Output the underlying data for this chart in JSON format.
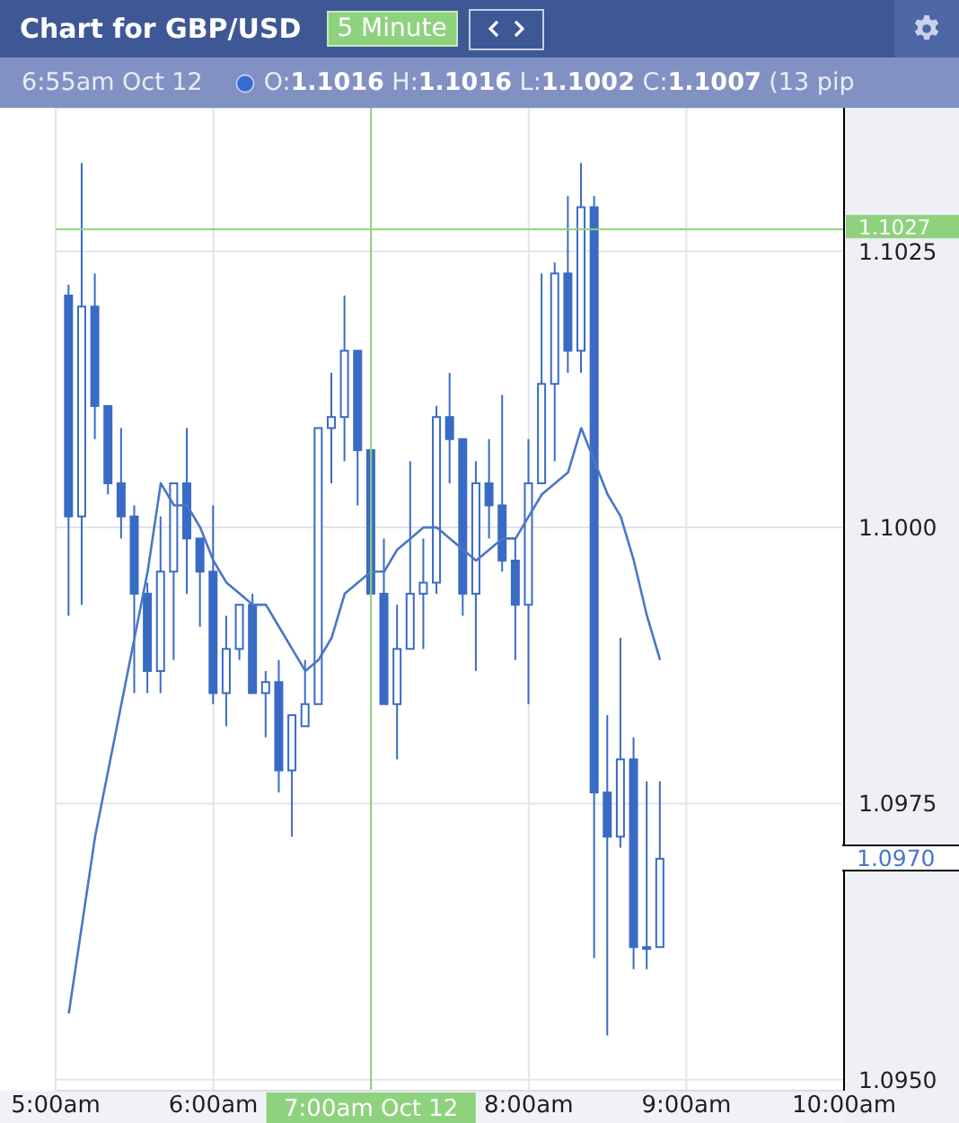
{
  "chart_data": {
    "type": "candlestick",
    "title": "Chart for GBP/USD",
    "subtitle": "5 Minute",
    "annotations": [
      "6:55am Oct 12",
      "O:1.1016 H:1.1016 L:1.1002 C:1.1007 (13 pip",
      "1.0970"
    ],
    "x": [
      5.0833,
      5.1667,
      5.25,
      5.3333,
      5.4167,
      5.5,
      5.5833,
      5.6667,
      5.75,
      5.8333,
      5.9167,
      6,
      6.0833,
      6.1667,
      6.25,
      6.3333,
      6.4167,
      6.5,
      6.5833,
      6.6667,
      6.75,
      6.8333,
      6.9167,
      7,
      7.0833,
      7.1667,
      7.25,
      7.3333,
      7.4167,
      7.5,
      7.5833,
      7.6667,
      7.75,
      7.8333,
      7.9167,
      8,
      8.0833,
      8.1667,
      8.25,
      8.3333,
      8.4167,
      8.5,
      8.5833,
      8.6667,
      8.75,
      8.8333
    ],
    "series": [
      {
        "type": "candlestick",
        "color": "#3a6bc4",
        "ohlc": [
          [
            1.1021,
            1.1022,
            1.0992,
            1.1001
          ],
          [
            1.1001,
            1.1033,
            1.0993,
            1.102
          ],
          [
            1.102,
            1.1023,
            1.1008,
            1.1011
          ],
          [
            1.1011,
            1.1011,
            1.1003,
            1.1004
          ],
          [
            1.1004,
            1.1009,
            1.0999,
            1.1001
          ],
          [
            1.1001,
            1.1002,
            1.0985,
            1.0994
          ],
          [
            1.0994,
            1.0995,
            1.0985,
            1.0987
          ],
          [
            1.0987,
            1.1001,
            1.0985,
            1.0996
          ],
          [
            1.0996,
            1.1004,
            1.0988,
            1.1004
          ],
          [
            1.1004,
            1.1009,
            1.0994,
            1.0999
          ],
          [
            1.0999,
            1.0999,
            1.0991,
            1.0996
          ],
          [
            1.0996,
            1.1002,
            1.0984,
            1.0985
          ],
          [
            1.0985,
            1.0992,
            1.0982,
            1.0989
          ],
          [
            1.0989,
            1.0993,
            1.0988,
            1.0993
          ],
          [
            1.0993,
            1.0994,
            1.0985,
            1.0985
          ],
          [
            1.0985,
            1.0987,
            1.0981,
            1.0986
          ],
          [
            1.0986,
            1.0988,
            1.0976,
            1.0978
          ],
          [
            1.0978,
            1.0983,
            1.0972,
            1.0983
          ],
          [
            1.0982,
            1.0988,
            1.0982,
            1.0984
          ],
          [
            1.0984,
            1.1009,
            1.0984,
            1.1009
          ],
          [
            1.1009,
            1.1014,
            1.1004,
            1.101
          ],
          [
            1.101,
            1.1021,
            1.1006,
            1.1016
          ],
          [
            1.1016,
            1.1016,
            1.1002,
            1.1007
          ],
          [
            1.1007,
            1.1007,
            1.0994,
            1.0994
          ],
          [
            1.0994,
            1.0999,
            1.0984,
            1.0984
          ],
          [
            1.0984,
            1.0993,
            1.0979,
            1.0989
          ],
          [
            1.0989,
            1.1006,
            1.0989,
            1.0994
          ],
          [
            1.0994,
            1.0999,
            1.0989,
            1.0995
          ],
          [
            1.0995,
            1.1011,
            1.0994,
            1.101
          ],
          [
            1.101,
            1.1014,
            1.1004,
            1.1008
          ],
          [
            1.1008,
            1.1008,
            1.0992,
            1.0994
          ],
          [
            1.0994,
            1.1006,
            1.0987,
            1.1004
          ],
          [
            1.1004,
            1.1008,
            1.0999,
            1.1002
          ],
          [
            1.1002,
            1.1012,
            1.0996,
            1.0997
          ],
          [
            1.0997,
            1.0999,
            1.0988,
            1.0993
          ],
          [
            1.0993,
            1.1008,
            1.0984,
            1.1004
          ],
          [
            1.1004,
            1.1023,
            1.1004,
            1.1013
          ],
          [
            1.1013,
            1.1024,
            1.1006,
            1.1023
          ],
          [
            1.1023,
            1.103,
            1.1014,
            1.1016
          ],
          [
            1.1016,
            1.1033,
            1.1014,
            1.1029
          ],
          [
            1.1029,
            1.103,
            1.0961,
            1.0976
          ],
          [
            1.0976,
            1.0983,
            1.0954,
            1.0972
          ],
          [
            1.0972,
            1.099,
            1.0971,
            1.0979
          ],
          [
            1.0979,
            1.0981,
            1.096,
            1.0962
          ],
          [
            1.0962,
            1.0977,
            1.096,
            1.0962
          ],
          [
            1.0962,
            1.0977,
            1.0962,
            1.097
          ]
        ]
      },
      {
        "type": "line",
        "color": "#4a76c8",
        "values": [
          1.0956,
          1.0964,
          1.0972,
          1.0978,
          1.0984,
          1.099,
          1.0996,
          1.1004,
          1.1002,
          1.1002,
          1.1,
          1.0997,
          1.0995,
          1.0994,
          1.0993,
          1.0993,
          1.0991,
          1.0989,
          1.0987,
          1.0988,
          1.099,
          1.0994,
          1.0995,
          1.0996,
          1.0996,
          1.0998,
          1.0999,
          1.1,
          1.1,
          1.0999,
          1.0998,
          1.0997,
          1.0998,
          1.0999,
          1.0999,
          1.1001,
          1.1003,
          1.1004,
          1.1005,
          1.1009,
          1.1006,
          1.1003,
          1.1001,
          1.0997,
          1.0992,
          1.0988
        ]
      }
    ],
    "xlim": [
      5,
      10
    ],
    "xticks": [
      {
        "value": 5,
        "label": "5:00am"
      },
      {
        "value": 6,
        "label": "6:00am"
      },
      {
        "value": 7,
        "label": null
      },
      {
        "value": 8,
        "label": "8:00am"
      },
      {
        "value": 9,
        "label": "9:00am"
      },
      {
        "value": 10,
        "label": "10:00am"
      }
    ],
    "ylim": [
      1.0949,
      1.1038
    ],
    "yticks": [
      {
        "value": 1.095,
        "label": "1.0950"
      },
      1.0975,
      {
        "value": 1.1,
        "label": "1.1000"
      },
      1.1025
    ],
    "grid": true,
    "marker": "none",
    "ref_lines": [
      {
        "axis": "x",
        "value": 7,
        "label": "7:00am Oct 12",
        "color": "#8fd27e"
      },
      {
        "axis": "y",
        "value": 1.1027,
        "label": "1.1027",
        "color": "#8fd27e"
      }
    ]
  }
}
